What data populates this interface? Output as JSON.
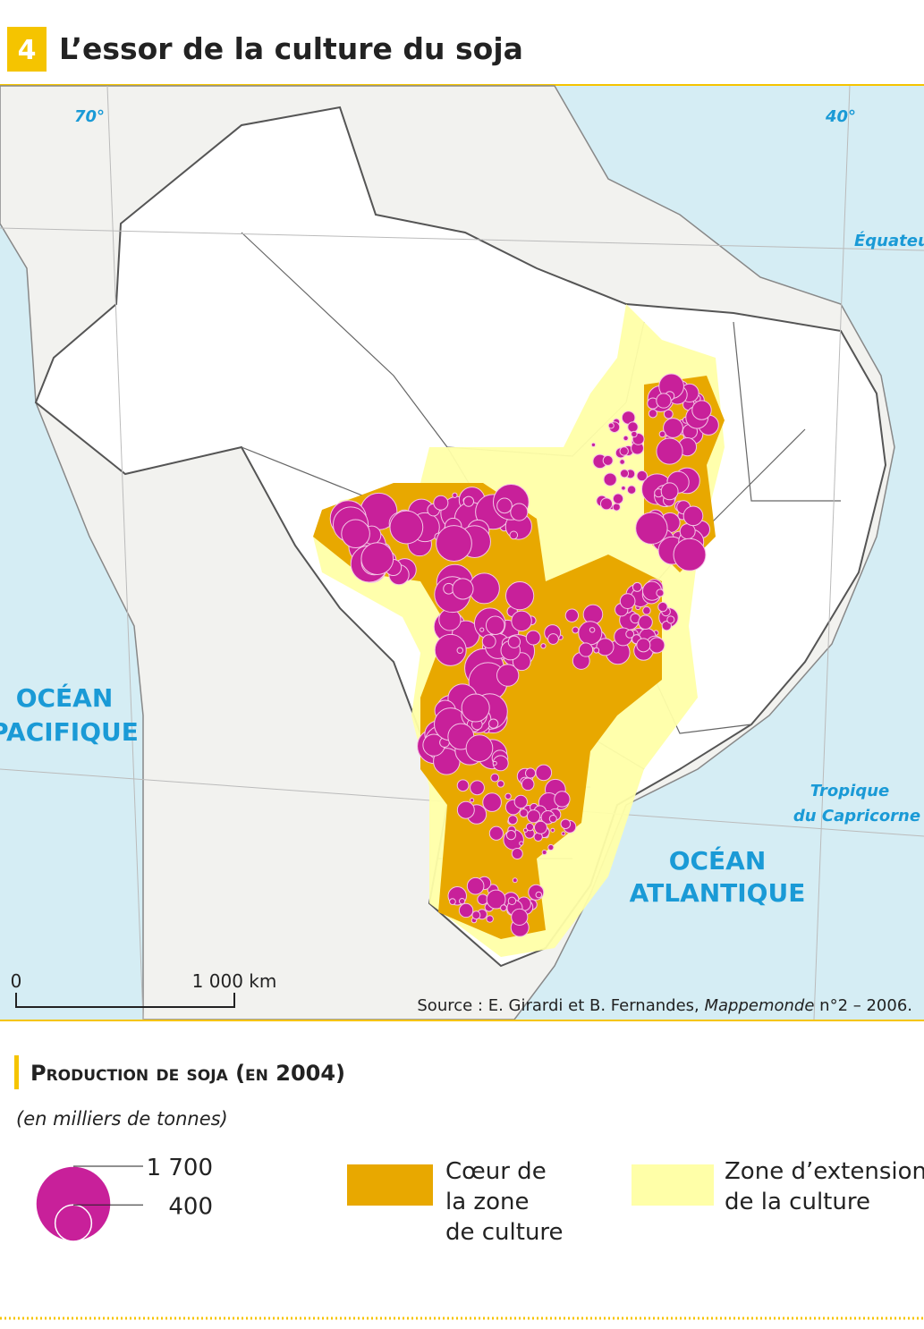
{
  "header": {
    "number": "4",
    "title": "L’essor de la culture du soja"
  },
  "map": {
    "labels": {
      "lon_70": "70°",
      "lon_40": "40°",
      "equator": "Équateu",
      "pacific": [
        "OCÉAN",
        "PACIFIQUE"
      ],
      "tropic": [
        "Tropique",
        "du Capricorne"
      ],
      "atlantic": [
        "OCÉAN",
        "ATLANTIQUE"
      ]
    },
    "scale": {
      "start": "0",
      "end": "1 000 km"
    },
    "source": {
      "prefix": "Source : E. Girardi et B. Fernandes, ",
      "journal": "Mappemonde",
      "suffix": " n°2 – 2006."
    }
  },
  "legend": {
    "title": "Production de soja (en 2004)",
    "unit": "(en milliers de tonnes)",
    "sizes": [
      {
        "value": 1700,
        "label": "1 700"
      },
      {
        "value": 400,
        "label": "400"
      }
    ],
    "core": [
      "Cœur de",
      "la zone",
      "de culture"
    ],
    "extension": [
      "Zone d’extension",
      "de la culture"
    ]
  }
}
